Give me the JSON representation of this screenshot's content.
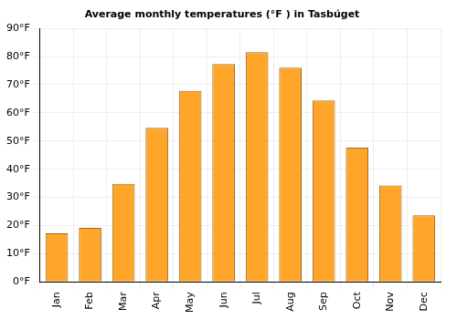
{
  "chart_data": {
    "type": "bar",
    "title": "Average monthly temperatures (°F ) in Tasbúget",
    "categories": [
      "Jan",
      "Feb",
      "Mar",
      "Apr",
      "May",
      "Jun",
      "Jul",
      "Aug",
      "Sep",
      "Oct",
      "Nov",
      "Dec"
    ],
    "values": [
      17.2,
      19.2,
      34.8,
      54.7,
      67.8,
      77.4,
      81.6,
      76.1,
      64.4,
      47.7,
      34.2,
      23.6
    ],
    "color": "#ffa62a",
    "ylim": [
      0,
      90
    ],
    "yticks": [
      {
        "value": 0,
        "label": "0°F"
      },
      {
        "value": 10,
        "label": "10°F"
      },
      {
        "value": 20,
        "label": "20°F"
      },
      {
        "value": 30,
        "label": "30°F"
      },
      {
        "value": 40,
        "label": "40°F"
      },
      {
        "value": 50,
        "label": "50°F"
      },
      {
        "value": 60,
        "label": "60°F"
      },
      {
        "value": 70,
        "label": "70°F"
      },
      {
        "value": 80,
        "label": "80°F"
      },
      {
        "value": 90,
        "label": "90°F"
      }
    ],
    "grid": true
  }
}
